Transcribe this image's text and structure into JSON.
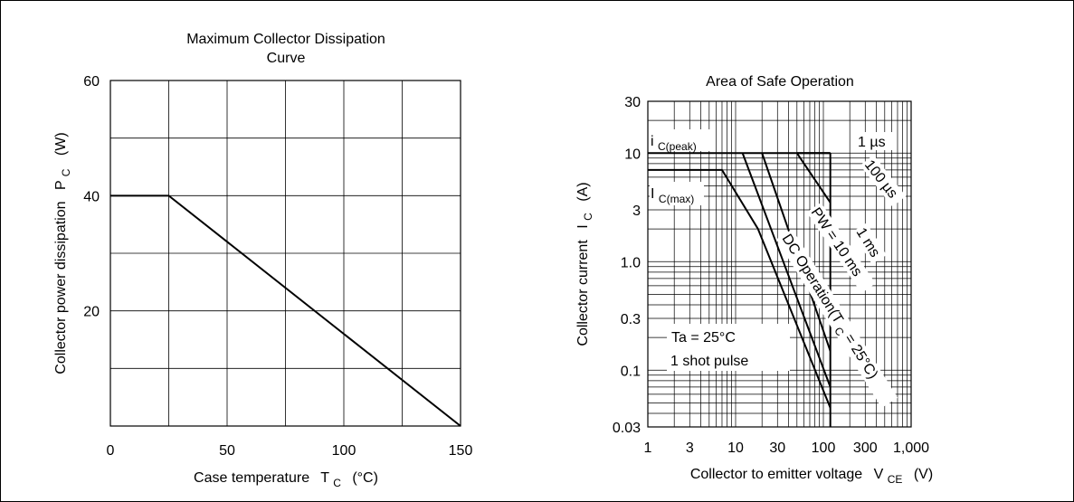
{
  "chart_data": [
    {
      "type": "line",
      "title_lines": [
        "Maximum Collector Dissipation",
        "Curve"
      ],
      "xlabel": "Case temperature",
      "xlabel_symbol": "T",
      "xlabel_sub": "C",
      "xlabel_unit": "(°C)",
      "ylabel": "Collector power dissipation",
      "ylabel_symbol": "P",
      "ylabel_sub": "C",
      "ylabel_unit": "(W)",
      "xlim": [
        0,
        150
      ],
      "ylim": [
        0,
        60
      ],
      "x_ticks": [
        0,
        50,
        100,
        150
      ],
      "x_grid": [
        25,
        50,
        75,
        100,
        125
      ],
      "y_ticks": [
        20,
        40,
        60
      ],
      "y_grid": [
        10,
        20,
        30,
        40,
        50
      ],
      "grid": true,
      "series": [
        {
          "x": [
            0,
            25,
            150
          ],
          "y": [
            40,
            40,
            0
          ]
        }
      ]
    },
    {
      "type": "line",
      "title": "Area of Safe Operation",
      "xlabel": "Collector to emitter voltage",
      "xlabel_symbol": "V",
      "xlabel_sub": "CE",
      "xlabel_unit": "(V)",
      "ylabel": "Collector current",
      "ylabel_symbol": "I",
      "ylabel_sub": "C",
      "ylabel_unit": "(A)",
      "x_scale": "log",
      "y_scale": "log",
      "xlim": [
        1,
        1000
      ],
      "ylim": [
        0.03,
        30
      ],
      "x_tick_labels": [
        "1",
        "3",
        "10",
        "30",
        "100",
        "300",
        "1,000"
      ],
      "x_tick_values": [
        1,
        3,
        10,
        30,
        100,
        300,
        1000
      ],
      "y_tick_labels": [
        "30",
        "10",
        "3",
        "1.0",
        "0.3",
        "0.1",
        "0.03"
      ],
      "y_tick_values": [
        30,
        10,
        3,
        1,
        0.3,
        0.1,
        0.03
      ],
      "grid": true,
      "series": [
        {
          "label": "1 µs",
          "x": [
            50,
            120
          ],
          "y": [
            10,
            10
          ]
        },
        {
          "label": "100 µs",
          "x": [
            50,
            120
          ],
          "y": [
            10,
            3.5
          ]
        },
        {
          "label": "1 ms",
          "x": [
            20,
            120
          ],
          "y": [
            10,
            0.15
          ]
        },
        {
          "label": "PW = 10 ms",
          "x": [
            12,
            120
          ],
          "y": [
            10,
            0.07
          ]
        },
        {
          "label": "DC Operation",
          "x": [
            1,
            7,
            18,
            120
          ],
          "y": [
            7,
            7,
            2,
            0.045
          ]
        },
        {
          "label": "iC(peak) limit",
          "x": [
            1,
            120
          ],
          "y": [
            10,
            10
          ]
        },
        {
          "label": "VCE limit",
          "x": [
            120,
            120
          ],
          "y": [
            10,
            0.03
          ]
        }
      ],
      "annotations": {
        "ic_peak": {
          "main": "i",
          "sub": "C(peak)"
        },
        "ic_max": {
          "main": "I",
          "sub": "C(max)"
        },
        "pulse_1us": "1 µs",
        "pulse_100us": "100 µs",
        "pulse_1ms": "1 ms",
        "pulse_10ms": "PW = 10 ms",
        "dc_op": "DC Operation(T",
        "dc_op_sub": "C",
        "dc_op_end": " = 25°C)",
        "ta_line": "Ta = 25°C",
        "shot_line": "1 shot pulse"
      }
    }
  ]
}
